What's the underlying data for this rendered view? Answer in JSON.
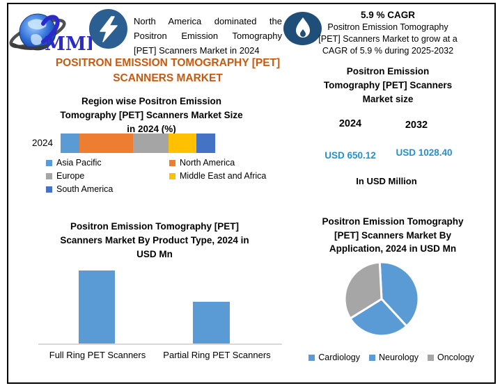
{
  "brand": {
    "logo_text": "MMR"
  },
  "header": {
    "na_highlight": {
      "icon": "lightning-icon",
      "text": "North America dominated the Positron Emission Tomography [PET] Scanners Market in 2024"
    },
    "cagr_highlight": {
      "icon": "flame-icon",
      "title": "5.9 % CAGR",
      "lines": [
        "Positron Emission Tomography",
        "[PET] Scanners Market to grow at a",
        "CAGR of 5.9 % during 2025-2032"
      ]
    }
  },
  "page_title": {
    "lines": [
      "POSITRON EMISSION TOMOGRAPHY [PET]",
      "SCANNERS MARKET"
    ],
    "color": "#C55A11"
  },
  "market_size_panel": {
    "title_lines": [
      "Positron Emission",
      "Tomography [PET] Scanners",
      "Market size"
    ],
    "years": [
      "2024",
      "2032"
    ],
    "values": [
      "USD 650.12",
      "USD 1028.40"
    ],
    "unit_note": "In USD Million",
    "value_color": "#2491CE"
  },
  "chart_data": [
    {
      "id": "region-share-2024",
      "type": "bar",
      "subtype": "horizontal-stacked",
      "title": "Region wise Positron Emission Tomography [PET] Scanners Market Size in 2024 (%)",
      "title_lines": [
        "Region wise Positron Emission",
        "Tomography [PET] Scanners Market Size",
        "in 2024 (%)"
      ],
      "categories": [
        "2024"
      ],
      "series": [
        {
          "name": "Asia Pacific",
          "values": [
            12
          ],
          "color": "#5B9BD5"
        },
        {
          "name": "North America",
          "values": [
            35
          ],
          "color": "#ED7D31"
        },
        {
          "name": "Europe",
          "values": [
            23
          ],
          "color": "#A5A5A5"
        },
        {
          "name": "Middle East and Africa",
          "values": [
            18
          ],
          "color": "#FFC000"
        },
        {
          "name": "South America",
          "values": [
            12
          ],
          "color": "#4472C4"
        }
      ],
      "value_note": "segment shares (%) estimated from segment widths; no data labels shown",
      "xlabel": "",
      "ylabel": "",
      "grid": false,
      "legend_position": "bottom"
    },
    {
      "id": "market-size-2024-2032",
      "type": "table",
      "title": "Positron Emission Tomography [PET] Scanners Market size",
      "columns": [
        "2024",
        "2032"
      ],
      "values": [
        650.12,
        1028.4
      ],
      "unit": "USD Million"
    },
    {
      "id": "product-type-2024",
      "type": "bar",
      "title": "Positron Emission Tomography [PET] Scanners Market By Product Type, 2024 in USD Mn",
      "title_lines": [
        "Positron Emission Tomography [PET]",
        "Scanners Market By Product Type, 2024 in",
        "USD Mn"
      ],
      "categories": [
        "Full Ring PET Scanners",
        "Partial Ring PET Scanners"
      ],
      "values": [
        105,
        60
      ],
      "value_note": "axis unlabeled; values are relative bar heights (px)",
      "bar_color": "#5B9BD5",
      "xlabel": "",
      "ylabel": "USD Mn",
      "grid": false
    },
    {
      "id": "application-2024",
      "type": "pie",
      "title": "Positron Emission Tomography [PET] Scanners Market By Application, 2024 in USD Mn",
      "title_lines": [
        "Positron Emission Tomography",
        "[PET] Scanners Market By",
        "Application, 2024 in USD Mn"
      ],
      "categories": [
        "Cardiology",
        "Neurology",
        "Oncology"
      ],
      "values": [
        39,
        28,
        33
      ],
      "colors": [
        "#5B9BD5",
        "#5B9BD5",
        "#A6A6A6"
      ],
      "start_angle_deg": -3,
      "value_note": "slice percentages estimated from arc angles; no data labels shown",
      "legend_position": "bottom"
    }
  ],
  "colors": {
    "page_title_orange": "#C55A11",
    "value_blue": "#2491CE",
    "lightning_badge_bg": "#2B5E91",
    "flame_badge_bg": "#1F4E79",
    "frame_border": "#000000",
    "axis_line_gray": "#D9D9D9"
  }
}
